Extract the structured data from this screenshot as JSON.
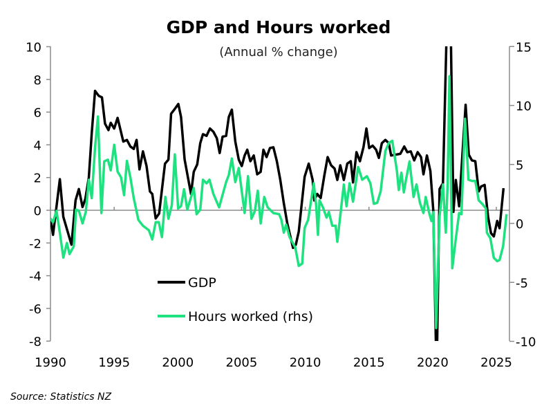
{
  "chart_data": {
    "type": "line",
    "title": "GDP and Hours worked",
    "subtitle": "(Annual % change)",
    "source": "Source: Statistics NZ",
    "xlabel": "",
    "ylabel": "",
    "xlim": [
      1990,
      2026
    ],
    "ylim_left": [
      -8,
      10
    ],
    "ylim_right": [
      -10,
      15
    ],
    "x_ticks": [
      "1990",
      "1995",
      "2000",
      "2005",
      "2010",
      "2015",
      "2020",
      "2025"
    ],
    "y_ticks_left": [
      "10",
      "8",
      "6",
      "4",
      "2",
      "0",
      "-2",
      "-4",
      "-6",
      "-8"
    ],
    "y_ticks_right": [
      "15",
      "10",
      "5",
      "0",
      "-5",
      "-10"
    ],
    "grid": false,
    "legend_placement": "bottom-left inside",
    "series": [
      {
        "name": "GDP",
        "axis": "left",
        "color": "#000000",
        "points": [
          [
            1990.0,
            -0.5
          ],
          [
            1990.2,
            -1.5
          ],
          [
            1990.74,
            1.9
          ],
          [
            1991.01,
            -0.4
          ],
          [
            1991.65,
            -2.1
          ],
          [
            1991.97,
            0.6
          ],
          [
            1992.23,
            1.3
          ],
          [
            1992.52,
            0.2
          ],
          [
            1992.74,
            0.7
          ],
          [
            1993.01,
            2.0
          ],
          [
            1993.24,
            4.7
          ],
          [
            1993.5,
            7.3
          ],
          [
            1993.79,
            7.0
          ],
          [
            1994.04,
            6.9
          ],
          [
            1994.28,
            5.3
          ],
          [
            1994.55,
            4.9
          ],
          [
            1994.73,
            5.35
          ],
          [
            1995.0,
            5.0
          ],
          [
            1995.27,
            5.65
          ],
          [
            1995.72,
            4.2
          ],
          [
            1996.0,
            4.3
          ],
          [
            1996.27,
            3.9
          ],
          [
            1996.54,
            3.75
          ],
          [
            1996.76,
            4.3
          ],
          [
            1996.99,
            2.5
          ],
          [
            1997.26,
            3.6
          ],
          [
            1997.54,
            2.7
          ],
          [
            1997.81,
            1.15
          ],
          [
            1997.99,
            1.0
          ],
          [
            1998.26,
            -0.5
          ],
          [
            1998.53,
            -0.2
          ],
          [
            1998.99,
            2.85
          ],
          [
            1999.26,
            3.1
          ],
          [
            1999.47,
            5.9
          ],
          [
            1999.76,
            6.2
          ],
          [
            2000.04,
            6.5
          ],
          [
            2000.25,
            5.7
          ],
          [
            2000.53,
            3.1
          ],
          [
            2001.03,
            1.0
          ],
          [
            2001.25,
            2.35
          ],
          [
            2001.52,
            2.8
          ],
          [
            2001.76,
            4.1
          ],
          [
            2001.97,
            4.65
          ],
          [
            2002.25,
            4.55
          ],
          [
            2002.52,
            5.0
          ],
          [
            2002.79,
            4.8
          ],
          [
            2003.06,
            4.4
          ],
          [
            2003.28,
            3.5
          ],
          [
            2003.51,
            4.5
          ],
          [
            2003.79,
            4.55
          ],
          [
            2004.0,
            5.7
          ],
          [
            2004.24,
            6.15
          ],
          [
            2004.51,
            4.2
          ],
          [
            2004.78,
            3.1
          ],
          [
            2005.02,
            2.7
          ],
          [
            2005.24,
            3.35
          ],
          [
            2005.45,
            3.7
          ],
          [
            2005.69,
            3.0
          ],
          [
            2005.96,
            3.35
          ],
          [
            2006.23,
            2.2
          ],
          [
            2006.5,
            2.35
          ],
          [
            2006.72,
            3.7
          ],
          [
            2006.96,
            3.25
          ],
          [
            2007.23,
            3.8
          ],
          [
            2007.5,
            3.85
          ],
          [
            2007.77,
            3.0
          ],
          [
            2008.04,
            1.85
          ],
          [
            2008.31,
            0.45
          ],
          [
            2008.59,
            -0.8
          ],
          [
            2009.04,
            -2.3
          ],
          [
            2009.26,
            -2.1
          ],
          [
            2009.49,
            -1.3
          ],
          [
            2009.95,
            2.05
          ],
          [
            2010.27,
            2.85
          ],
          [
            2010.58,
            1.85
          ],
          [
            2010.71,
            0.6
          ],
          [
            2010.94,
            1.0
          ],
          [
            2011.21,
            0.75
          ],
          [
            2011.49,
            2.1
          ],
          [
            2011.76,
            3.25
          ],
          [
            2012.03,
            2.75
          ],
          [
            2012.3,
            2.55
          ],
          [
            2012.52,
            1.85
          ],
          [
            2012.75,
            2.75
          ],
          [
            2013.03,
            1.85
          ],
          [
            2013.3,
            2.85
          ],
          [
            2013.57,
            3.0
          ],
          [
            2013.75,
            1.7
          ],
          [
            2014.02,
            3.55
          ],
          [
            2014.29,
            3.0
          ],
          [
            2014.57,
            3.85
          ],
          [
            2014.8,
            5.0
          ],
          [
            2015.02,
            3.8
          ],
          [
            2015.29,
            3.95
          ],
          [
            2015.56,
            3.7
          ],
          [
            2015.78,
            3.2
          ],
          [
            2016.01,
            4.1
          ],
          [
            2016.29,
            4.3
          ],
          [
            2016.56,
            4.1
          ],
          [
            2016.74,
            3.35
          ],
          [
            2017.1,
            3.4
          ],
          [
            2017.46,
            3.45
          ],
          [
            2017.77,
            3.9
          ],
          [
            2018.01,
            3.55
          ],
          [
            2018.28,
            3.6
          ],
          [
            2018.55,
            3.05
          ],
          [
            2018.82,
            3.55
          ],
          [
            2019.09,
            3.25
          ],
          [
            2019.28,
            2.2
          ],
          [
            2019.55,
            3.35
          ],
          [
            2019.82,
            2.4
          ],
          [
            2020.05,
            0.0
          ],
          [
            2020.31,
            -10.3
          ],
          [
            2020.54,
            1.3
          ],
          [
            2020.81,
            1.65
          ],
          [
            2021.3,
            17.5
          ],
          [
            2021.63,
            -0.1
          ],
          [
            2021.82,
            1.85
          ],
          [
            2022.08,
            0.25
          ],
          [
            2022.36,
            3.7
          ],
          [
            2022.59,
            6.45
          ],
          [
            2022.84,
            3.4
          ],
          [
            2023.08,
            3.05
          ],
          [
            2023.35,
            3.0
          ],
          [
            2023.62,
            1.15
          ],
          [
            2023.8,
            1.45
          ],
          [
            2024.08,
            1.55
          ],
          [
            2024.35,
            -0.4
          ],
          [
            2024.58,
            -1.4
          ],
          [
            2024.8,
            -1.6
          ],
          [
            2025.07,
            -0.65
          ],
          [
            2025.25,
            -1.1
          ],
          [
            2025.56,
            1.35
          ]
        ]
      },
      {
        "name": "Hours worked (rhs)",
        "axis": "right",
        "color": "#1de27f",
        "points": [
          [
            1990.0,
            0.4
          ],
          [
            1990.2,
            0.1
          ],
          [
            1990.47,
            1.07
          ],
          [
            1990.74,
            -0.8
          ],
          [
            1991.01,
            -2.9
          ],
          [
            1991.29,
            -1.66
          ],
          [
            1991.5,
            -2.6
          ],
          [
            1991.83,
            -1.95
          ],
          [
            1992.01,
            1.17
          ],
          [
            1992.23,
            1.07
          ],
          [
            1992.52,
            0.0
          ],
          [
            1992.77,
            0.97
          ],
          [
            1993.01,
            3.7
          ],
          [
            1993.24,
            2.14
          ],
          [
            1993.5,
            6.43
          ],
          [
            1993.73,
            9.06
          ],
          [
            1994.0,
            0.88
          ],
          [
            1994.22,
            5.26
          ],
          [
            1994.51,
            5.4
          ],
          [
            1994.73,
            4.5
          ],
          [
            1995.0,
            6.67
          ],
          [
            1995.27,
            4.4
          ],
          [
            1995.54,
            3.9
          ],
          [
            1995.78,
            2.4
          ],
          [
            1996.0,
            5.3
          ],
          [
            1996.27,
            3.9
          ],
          [
            1996.54,
            2.14
          ],
          [
            1996.9,
            0.3
          ],
          [
            1997.26,
            -0.2
          ],
          [
            1997.72,
            -0.58
          ],
          [
            1997.99,
            -1.36
          ],
          [
            1998.26,
            0.1
          ],
          [
            1998.5,
            0.1
          ],
          [
            1998.75,
            -1.17
          ],
          [
            1999.02,
            2.24
          ],
          [
            1999.26,
            0.4
          ],
          [
            1999.53,
            1.56
          ],
          [
            1999.76,
            5.85
          ],
          [
            2000.02,
            1.27
          ],
          [
            2000.25,
            1.46
          ],
          [
            2000.49,
            2.9
          ],
          [
            2000.74,
            1.17
          ],
          [
            2001.25,
            3.0
          ],
          [
            2001.47,
            0.78
          ],
          [
            2001.76,
            1.17
          ],
          [
            2001.97,
            3.7
          ],
          [
            2002.25,
            3.4
          ],
          [
            2002.48,
            3.7
          ],
          [
            2002.79,
            2.5
          ],
          [
            2003.24,
            1.36
          ],
          [
            2003.79,
            3.5
          ],
          [
            2004.0,
            4.1
          ],
          [
            2004.24,
            5.5
          ],
          [
            2004.51,
            3.5
          ],
          [
            2004.78,
            4.7
          ],
          [
            2005.24,
            0.88
          ],
          [
            2005.51,
            4.0
          ],
          [
            2005.78,
            0.4
          ],
          [
            2006.05,
            1.07
          ],
          [
            2006.27,
            2.77
          ],
          [
            2006.5,
            0.0
          ],
          [
            2006.78,
            2.24
          ],
          [
            2007.05,
            1.36
          ],
          [
            2007.5,
            0.88
          ],
          [
            2007.95,
            0.78
          ],
          [
            2008.13,
            0.3
          ],
          [
            2008.32,
            -0.78
          ],
          [
            2008.5,
            -0.1
          ],
          [
            2008.77,
            -1.17
          ],
          [
            2009.22,
            -2.05
          ],
          [
            2009.49,
            -3.6
          ],
          [
            2009.76,
            -3.4
          ],
          [
            2009.95,
            -0.39
          ],
          [
            2010.22,
            0.29
          ],
          [
            2010.49,
            2.14
          ],
          [
            2010.67,
            3.4
          ],
          [
            2010.85,
            1.56
          ],
          [
            2011.0,
            -0.97
          ],
          [
            2011.12,
            1.95
          ],
          [
            2011.39,
            1.36
          ],
          [
            2011.67,
            0.49
          ],
          [
            2011.85,
            0.97
          ],
          [
            2012.12,
            -0.2
          ],
          [
            2012.39,
            -0.2
          ],
          [
            2012.52,
            -1.56
          ],
          [
            2013.03,
            3.3
          ],
          [
            2013.24,
            1.46
          ],
          [
            2013.48,
            3.4
          ],
          [
            2013.75,
            1.85
          ],
          [
            2014.15,
            4.78
          ],
          [
            2014.47,
            3.7
          ],
          [
            2014.84,
            4.0
          ],
          [
            2015.11,
            3.4
          ],
          [
            2015.38,
            1.66
          ],
          [
            2015.65,
            1.75
          ],
          [
            2015.92,
            2.73
          ],
          [
            2016.29,
            6.14
          ],
          [
            2016.56,
            6.82
          ],
          [
            2016.83,
            7.0
          ],
          [
            2017.19,
            4.5
          ],
          [
            2017.34,
            2.83
          ],
          [
            2017.55,
            4.3
          ],
          [
            2017.74,
            2.63
          ],
          [
            2017.92,
            3.8
          ],
          [
            2018.19,
            5.26
          ],
          [
            2018.32,
            4.0
          ],
          [
            2018.5,
            2.24
          ],
          [
            2018.73,
            3.3
          ],
          [
            2019.0,
            1.75
          ],
          [
            2019.28,
            0.88
          ],
          [
            2019.46,
            2.24
          ],
          [
            2019.73,
            0.88
          ],
          [
            2019.91,
            0.2
          ],
          [
            2020.05,
            0.97
          ],
          [
            2020.27,
            -8.87
          ],
          [
            2020.54,
            0.58
          ],
          [
            2020.81,
            3.3
          ],
          [
            2021.03,
            -0.78
          ],
          [
            2021.18,
            3.4
          ],
          [
            2021.32,
            12.48
          ],
          [
            2021.54,
            -3.8
          ],
          [
            2021.81,
            -1.36
          ],
          [
            2022.08,
            0.88
          ],
          [
            2022.26,
            0.78
          ],
          [
            2022.54,
            8.87
          ],
          [
            2022.81,
            3.7
          ],
          [
            2023.08,
            3.6
          ],
          [
            2023.35,
            3.6
          ],
          [
            2023.62,
            1.95
          ],
          [
            2023.89,
            1.66
          ],
          [
            2024.17,
            1.27
          ],
          [
            2024.26,
            -0.78
          ],
          [
            2024.53,
            -1.27
          ],
          [
            2024.8,
            -2.92
          ],
          [
            2025.07,
            -3.2
          ],
          [
            2025.25,
            -3.1
          ],
          [
            2025.53,
            -1.95
          ],
          [
            2025.8,
            0.78
          ]
        ]
      }
    ]
  }
}
